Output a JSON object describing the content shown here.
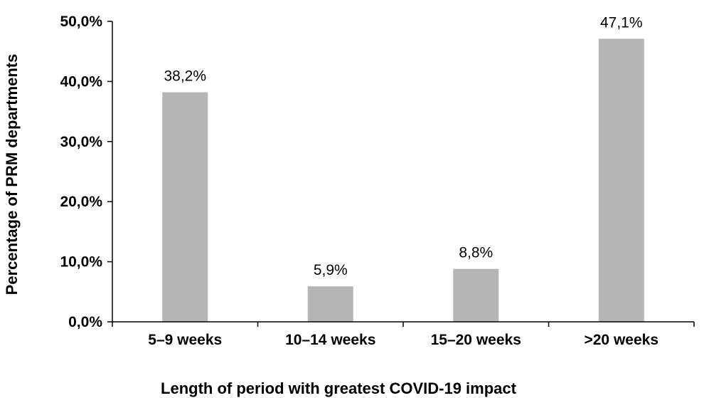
{
  "chart_data": {
    "type": "bar",
    "categories": [
      "5–9 weeks",
      "10–14 weeks",
      "15–20 weeks",
      ">20 weeks"
    ],
    "values": [
      38.2,
      5.9,
      8.8,
      47.1
    ],
    "data_labels": [
      "38,2%",
      "5,9%",
      "8,8%",
      "47,1%"
    ],
    "yticks": [
      0,
      10,
      20,
      30,
      40,
      50
    ],
    "ytick_labels": [
      "0,0%",
      "10,0%",
      "20,0%",
      "30,0%",
      "40,0%",
      "50,0%"
    ],
    "ylim": [
      0,
      50
    ],
    "xlabel": "Length of period with greatest COVID-19 impact",
    "ylabel": "Percentage of PRM departments",
    "title": "",
    "grid": false,
    "legend": false,
    "bar_color": "#b5b5b5",
    "axis_color": "#000000"
  }
}
